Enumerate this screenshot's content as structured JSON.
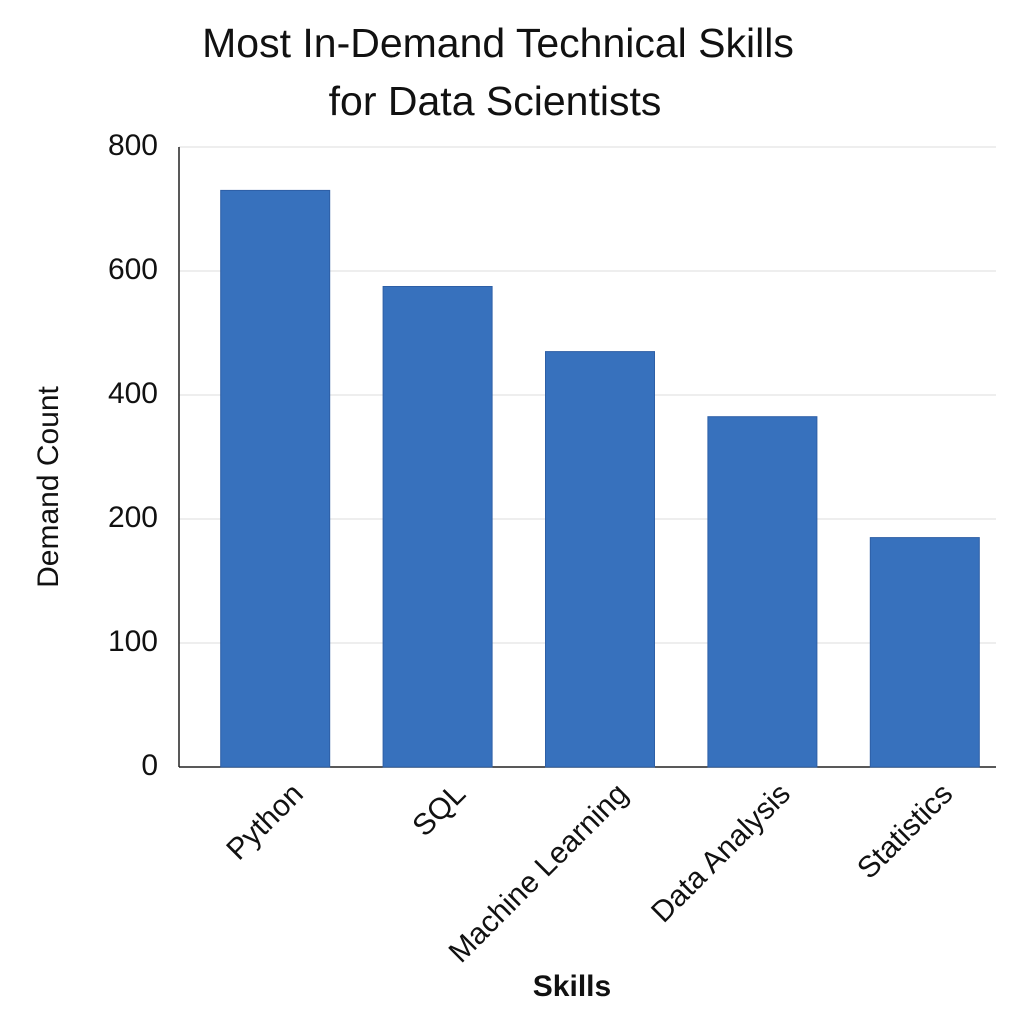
{
  "chart_data": {
    "type": "bar",
    "title": [
      "Most In-Demand Technical Skills",
      "for Data Scientists"
    ],
    "x_label": "Skills",
    "y_label": "Demand Count",
    "categories": [
      "Python",
      "SQL",
      "Machine Learning",
      "Data Analysis",
      "Statistics"
    ],
    "values": [
      730,
      575,
      470,
      365,
      185
    ],
    "color": "#3771bd",
    "ylim": [
      0,
      800
    ],
    "yticks": [
      0,
      100,
      200,
      400,
      600,
      800
    ],
    "grid": true
  }
}
